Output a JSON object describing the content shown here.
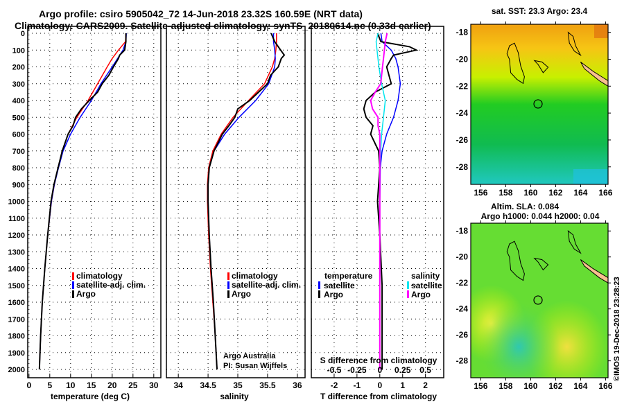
{
  "header": {
    "line1": "Argo profile: csiro 5905042_72 14-Jun-2018 23.32S 160.59E (NRT data)",
    "line2": "Climatology: CARS2009. Satellite-adjusted climatology: synTS_20180614.nc (0.33d earlier)"
  },
  "credit": "©IMOS 19-Dec-2018 23:28:23",
  "colors": {
    "climatology": "#ff0000",
    "satellite": "#0000ff",
    "argo": "#000000",
    "s_satellite": "#00e5ee",
    "s_argo": "#ff00ff"
  },
  "chart_data": [
    {
      "type": "line",
      "id": "temperature",
      "xlabel": "temperature (deg C)",
      "ylabel": "",
      "xlim": [
        -0.3,
        31.7
      ],
      "ylim": [
        2050,
        -10
      ],
      "xticks": [
        "0",
        "5",
        "10",
        "15",
        "20",
        "25",
        "30"
      ],
      "xtick_values": [
        0,
        5,
        10,
        15,
        20,
        25,
        30
      ],
      "yticks": [
        0,
        100,
        200,
        300,
        400,
        500,
        600,
        700,
        800,
        900,
        1000,
        1100,
        1200,
        1300,
        1400,
        1500,
        1600,
        1700,
        1800,
        1900,
        2000
      ],
      "legend": [
        "climatology",
        "satellite-adj. clim.",
        "Argo"
      ],
      "legend_placement": "lower-middle",
      "series": [
        {
          "name": "climatology",
          "color": "#ff0000",
          "depth": [
            0,
            50,
            100,
            150,
            200,
            300,
            400,
            500,
            600,
            700,
            800,
            900,
            1000,
            1200,
            1400,
            1600,
            1800,
            2000
          ],
          "values": [
            23.3,
            23.2,
            21.5,
            20.0,
            18.8,
            16.5,
            14.2,
            11.5,
            9.4,
            8.0,
            7.0,
            6.1,
            5.4,
            4.5,
            3.8,
            3.2,
            2.8,
            2.5
          ]
        },
        {
          "name": "satellite-adj. clim.",
          "color": "#0000ff",
          "depth": [
            0,
            50,
            100,
            150,
            200,
            300,
            400,
            500,
            600,
            700,
            800,
            900,
            1000,
            1200,
            1400,
            1600,
            1800,
            2000
          ],
          "values": [
            23.4,
            23.3,
            22.6,
            21.3,
            20.0,
            17.3,
            15.0,
            12.3,
            10.0,
            8.2,
            7.1,
            6.1,
            5.4,
            4.5,
            3.8,
            3.2,
            2.8,
            2.5
          ]
        },
        {
          "name": "Argo",
          "color": "#000000",
          "depth": [
            0,
            50,
            100,
            130,
            150,
            200,
            250,
            300,
            350,
            400,
            450,
            500,
            550,
            600,
            700,
            800,
            900,
            1000,
            1200,
            1400,
            1600,
            1800,
            2000
          ],
          "values": [
            23.3,
            23.3,
            23.0,
            21.8,
            21.5,
            20.3,
            19.2,
            17.6,
            16.5,
            14.5,
            12.6,
            11.2,
            10.6,
            9.4,
            8.0,
            7.0,
            6.0,
            5.3,
            4.5,
            3.8,
            3.2,
            2.8,
            2.5
          ]
        }
      ]
    },
    {
      "type": "line",
      "id": "salinity",
      "xlabel": "salinity",
      "xlim": [
        33.8,
        36.13
      ],
      "ylim": [
        2050,
        -10
      ],
      "xticks": [
        "34",
        "34.5",
        "35",
        "35.5",
        "36"
      ],
      "xtick_values": [
        34,
        34.5,
        35,
        35.5,
        36
      ],
      "legend": [
        "climatology",
        "satellite-adj. clim.",
        "Argo"
      ],
      "legend_placement": "lower-right",
      "annotation": [
        "Argo Australia",
        "PI: Susan Wijffels"
      ],
      "series": [
        {
          "name": "climatology",
          "color": "#ff0000",
          "depth": [
            0,
            50,
            100,
            150,
            200,
            300,
            400,
            500,
            600,
            700,
            800,
            900,
            1000,
            1200,
            1400,
            1600,
            1800,
            2000
          ],
          "values": [
            35.65,
            35.65,
            35.64,
            35.62,
            35.58,
            35.45,
            35.18,
            34.92,
            34.72,
            34.58,
            34.51,
            34.49,
            34.49,
            34.51,
            34.54,
            34.58,
            34.62,
            34.65
          ]
        },
        {
          "name": "satellite-adj. clim.",
          "color": "#0000ff",
          "depth": [
            0,
            50,
            100,
            150,
            200,
            300,
            400,
            500,
            600,
            700,
            800,
            900,
            1000,
            1200,
            1400,
            1600,
            1800,
            2000
          ],
          "values": [
            35.6,
            35.6,
            35.62,
            35.63,
            35.62,
            35.52,
            35.3,
            35.02,
            34.78,
            34.6,
            34.52,
            34.5,
            34.5,
            34.52,
            34.55,
            34.59,
            34.62,
            34.65
          ]
        },
        {
          "name": "Argo",
          "color": "#000000",
          "depth": [
            0,
            50,
            100,
            130,
            150,
            200,
            250,
            300,
            350,
            400,
            450,
            500,
            550,
            600,
            700,
            800,
            900,
            1000,
            1200,
            1400,
            1600,
            1800,
            2000
          ],
          "values": [
            35.56,
            35.62,
            35.72,
            35.78,
            35.73,
            35.68,
            35.55,
            35.5,
            35.35,
            35.2,
            35.0,
            34.95,
            34.85,
            34.74,
            34.6,
            34.52,
            34.5,
            34.5,
            34.52,
            34.55,
            34.59,
            34.62,
            34.65
          ]
        }
      ]
    },
    {
      "type": "line",
      "id": "differences",
      "xlabel": "T difference from climatology",
      "x2label": "S difference from climatology",
      "xlim": [
        -3,
        2.8
      ],
      "x2lim": [
        -0.75,
        0.7
      ],
      "ylim": [
        2050,
        -10
      ],
      "xticks": [
        "-2",
        "-1",
        "0",
        "1",
        "2"
      ],
      "xtick_values": [
        -2,
        -1,
        0,
        1,
        2
      ],
      "x2ticks": [
        "-0.5",
        "-0.25",
        "0",
        "0.25",
        "0.5"
      ],
      "x2tick_values": [
        -0.5,
        -0.25,
        0,
        0.25,
        0.5
      ],
      "legend_temperature": {
        "title": "temperature",
        "items": [
          "satellite",
          "Argo"
        ]
      },
      "legend_salinity": {
        "title": "salinity",
        "items": [
          "satellite",
          "Argo"
        ]
      },
      "series": [
        {
          "name": "T satellite",
          "axis": "T",
          "color": "#0000ff",
          "depth": [
            0,
            50,
            100,
            150,
            200,
            300,
            400,
            500,
            600,
            700,
            800,
            1000,
            2000
          ],
          "values": [
            0.05,
            0.1,
            0.5,
            0.7,
            0.8,
            0.9,
            0.8,
            0.6,
            0.3,
            0.1,
            0.02,
            0,
            0
          ]
        },
        {
          "name": "T Argo",
          "axis": "T",
          "color": "#000000",
          "depth": [
            0,
            50,
            80,
            100,
            130,
            150,
            200,
            250,
            300,
            350,
            400,
            450,
            500,
            550,
            600,
            700,
            800,
            1000,
            1200,
            1500,
            1800,
            2000
          ],
          "values": [
            -0.1,
            0.05,
            1.3,
            1.6,
            0.6,
            0.5,
            0.3,
            0.4,
            0.5,
            -0.2,
            -0.6,
            -0.7,
            -0.6,
            -0.3,
            -0.4,
            -0.05,
            0,
            -0.1,
            0,
            0.1,
            0.1,
            0.1
          ]
        },
        {
          "name": "S satellite",
          "axis": "S",
          "color": "#00e5ee",
          "depth": [
            0,
            50,
            100,
            200,
            300,
            400,
            500,
            600,
            700,
            800,
            1000,
            2000
          ],
          "values": [
            -0.02,
            -0.04,
            -0.03,
            -0.01,
            0.02,
            0.06,
            0.04,
            0.02,
            0.01,
            0,
            0,
            0
          ]
        },
        {
          "name": "S Argo",
          "axis": "S",
          "color": "#ff00ff",
          "depth": [
            0,
            50,
            100,
            150,
            200,
            300,
            350,
            400,
            450,
            500,
            550,
            600,
            700,
            800,
            1000,
            2000
          ],
          "values": [
            0.08,
            0.06,
            0.05,
            0.04,
            0.03,
            0.01,
            -0.05,
            -0.1,
            -0.08,
            -0.02,
            -0.02,
            0.0,
            0,
            0,
            0,
            0
          ]
        }
      ]
    },
    {
      "type": "heatmap",
      "id": "sst-map",
      "title": "sat. SST: 23.3 Argo: 23.4",
      "xticks": [
        "156",
        "158",
        "160",
        "162",
        "164",
        "166"
      ],
      "xtick_values": [
        156,
        158,
        160,
        162,
        164,
        166
      ],
      "yticks": [
        "-18",
        "-20",
        "-22",
        "-24",
        "-26",
        "-28"
      ],
      "ytick_values": [
        -18,
        -20,
        -22,
        -24,
        -26,
        -28
      ],
      "xlim": [
        155.2,
        166.2
      ],
      "ylim": [
        -29.3,
        -17.4
      ],
      "argo_position": [
        160.59,
        -23.32
      ]
    },
    {
      "type": "heatmap",
      "id": "sla-map",
      "title": "Altim. SLA: 0.084",
      "subtitle": "Argo h1000: 0.044 h2000: 0.04",
      "xticks": [
        "156",
        "158",
        "160",
        "162",
        "164",
        "166"
      ],
      "xtick_values": [
        156,
        158,
        160,
        162,
        164,
        166
      ],
      "yticks": [
        "-18",
        "-20",
        "-22",
        "-24",
        "-26",
        "-28"
      ],
      "ytick_values": [
        -18,
        -20,
        -22,
        -24,
        -26,
        -28
      ],
      "xlim": [
        155.2,
        166.2
      ],
      "ylim": [
        -29.3,
        -17.4
      ],
      "argo_position": [
        160.59,
        -23.32
      ]
    }
  ]
}
